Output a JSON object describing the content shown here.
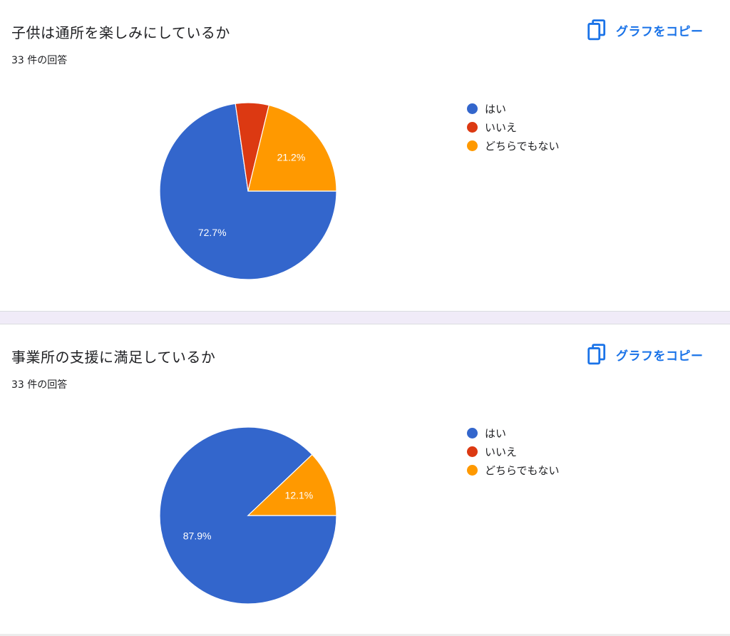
{
  "colors": {
    "yes": "#3366cc",
    "no": "#dc3912",
    "neither": "#ff9900",
    "accent": "#1a73e8"
  },
  "copy_label": "グラフをコピー",
  "icons": {
    "copy": "copy-icon"
  },
  "legend": [
    "はい",
    "いいえ",
    "どちらでもない"
  ],
  "questions": [
    {
      "title": "子供は通所を楽しみにしているか",
      "count": "33 件の回答",
      "slice_labels": {
        "yes": "72.7%",
        "no": "",
        "neither": "21.2%"
      }
    },
    {
      "title": "事業所の支援に満足しているか",
      "count": "33 件の回答",
      "slice_labels": {
        "yes": "87.9%",
        "no": "",
        "neither": "12.1%"
      }
    }
  ],
  "chart_data": [
    {
      "type": "pie",
      "title": "子供は通所を楽しみにしているか",
      "categories": [
        "はい",
        "いいえ",
        "どちらでもない"
      ],
      "values": [
        72.7,
        6.1,
        21.2
      ],
      "colors": [
        "#3366cc",
        "#dc3912",
        "#ff9900"
      ],
      "legend": "right"
    },
    {
      "type": "pie",
      "title": "事業所の支援に満足しているか",
      "categories": [
        "はい",
        "いいえ",
        "どちらでもない"
      ],
      "values": [
        87.9,
        0,
        12.1
      ],
      "colors": [
        "#3366cc",
        "#dc3912",
        "#ff9900"
      ],
      "legend": "right"
    }
  ]
}
